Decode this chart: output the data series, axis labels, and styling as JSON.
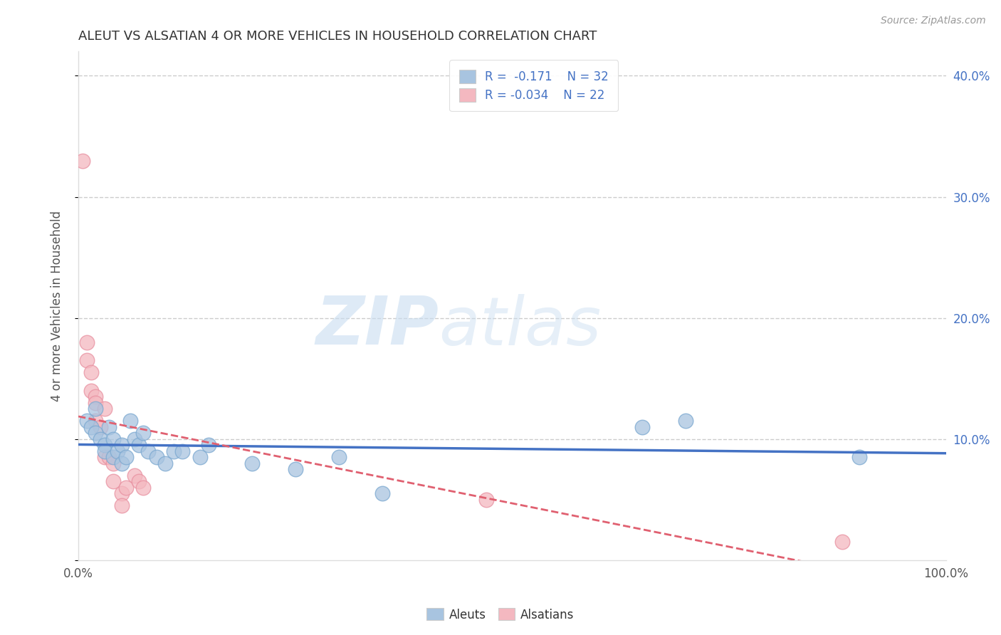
{
  "title": "ALEUT VS ALSATIAN 4 OR MORE VEHICLES IN HOUSEHOLD CORRELATION CHART",
  "source": "Source: ZipAtlas.com",
  "ylabel": "4 or more Vehicles in Household",
  "xlabel": "",
  "xlim": [
    0,
    100
  ],
  "ylim": [
    0,
    42
  ],
  "grid_color": "#cccccc",
  "background_color": "#ffffff",
  "aleut_color": "#a8c4e0",
  "alsatian_color": "#f4b8c0",
  "aleut_edge_color": "#7ba8d0",
  "alsatian_edge_color": "#e890a0",
  "aleut_line_color": "#4472c4",
  "alsatian_line_color": "#e06070",
  "aleut_R": -0.171,
  "aleut_N": 32,
  "alsatian_R": -0.034,
  "alsatian_N": 22,
  "aleut_scatter_x": [
    1.0,
    1.5,
    2.0,
    2.0,
    2.5,
    3.0,
    3.0,
    3.5,
    4.0,
    4.0,
    4.5,
    5.0,
    5.0,
    5.5,
    6.0,
    6.5,
    7.0,
    7.5,
    8.0,
    9.0,
    10.0,
    11.0,
    12.0,
    14.0,
    15.0,
    20.0,
    25.0,
    30.0,
    35.0,
    65.0,
    70.0,
    90.0
  ],
  "aleut_scatter_y": [
    11.5,
    11.0,
    12.5,
    10.5,
    10.0,
    9.5,
    9.0,
    11.0,
    10.0,
    8.5,
    9.0,
    9.5,
    8.0,
    8.5,
    11.5,
    10.0,
    9.5,
    10.5,
    9.0,
    8.5,
    8.0,
    9.0,
    9.0,
    8.5,
    9.5,
    8.0,
    7.5,
    8.5,
    5.5,
    11.0,
    11.5,
    8.5
  ],
  "alsatian_scatter_x": [
    0.5,
    1.0,
    1.0,
    1.5,
    1.5,
    2.0,
    2.0,
    2.0,
    2.5,
    3.0,
    3.0,
    3.5,
    4.0,
    4.0,
    5.0,
    5.0,
    5.5,
    6.5,
    7.0,
    7.5,
    47.0,
    88.0
  ],
  "alsatian_scatter_y": [
    33.0,
    18.0,
    16.5,
    15.5,
    14.0,
    13.5,
    13.0,
    11.5,
    11.0,
    12.5,
    8.5,
    8.5,
    8.0,
    6.5,
    5.5,
    4.5,
    6.0,
    7.0,
    6.5,
    6.0,
    5.0,
    1.5
  ],
  "watermark_zip": "ZIP",
  "watermark_atlas": "atlas",
  "legend_aleut": "Aleuts",
  "legend_alsatian": "Alsatians"
}
